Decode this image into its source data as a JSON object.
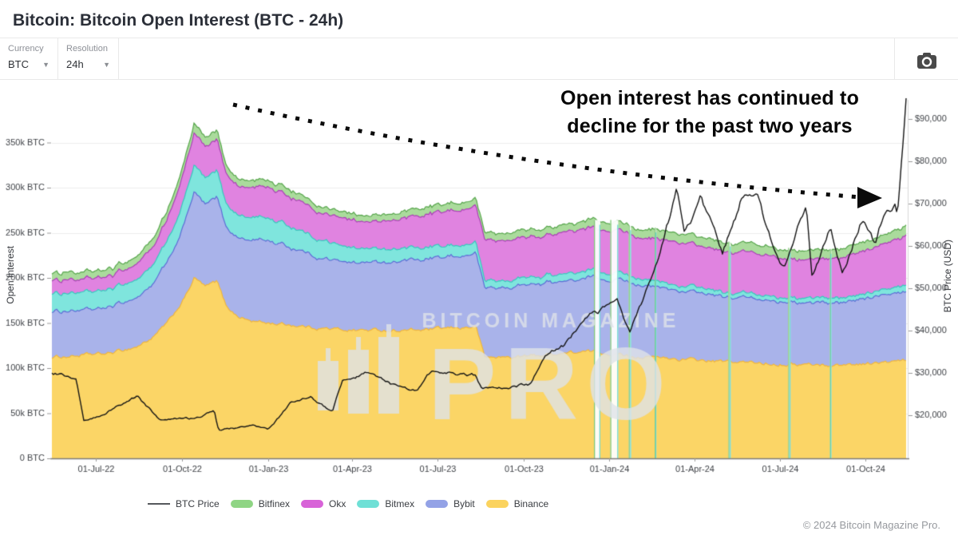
{
  "header": {
    "title": "Bitcoin: Bitcoin Open Interest (BTC - 24h)"
  },
  "controls": {
    "currency": {
      "label": "Currency",
      "value": "BTC"
    },
    "resolution": {
      "label": "Resolution",
      "value": "24h"
    }
  },
  "annotation": {
    "line1": "Open interest has continued to",
    "line2": "decline for the past two years"
  },
  "watermark": {
    "line1": "BITCOIN MAGAZINE",
    "line2": "PRO"
  },
  "footer": {
    "copyright": "© 2024 Bitcoin Magazine Pro."
  },
  "legend": {
    "items": [
      {
        "label": "BTC Price",
        "color": "#55585c",
        "type": "line"
      },
      {
        "label": "Bitfinex",
        "color": "#8FD584",
        "type": "area"
      },
      {
        "label": "Okx",
        "color": "#D863D8",
        "type": "area"
      },
      {
        "label": "Bitmex",
        "color": "#6FE0D6",
        "type": "area"
      },
      {
        "label": "Bybit",
        "color": "#93A2E6",
        "type": "area"
      },
      {
        "label": "Binance",
        "color": "#FBD35E",
        "type": "area"
      }
    ]
  },
  "chart_data": {
    "type": "area-stacked+line",
    "title": "Bitcoin Open Interest by exchange (BTC, 24h) with BTC price overlay",
    "x_ticks": {
      "labels": [
        "01-Jul-22",
        "01-Oct-22",
        "01-Jan-23",
        "01-Apr-23",
        "01-Jul-23",
        "01-Oct-23",
        "01-Jan-24",
        "01-Apr-24",
        "01-Jul-24",
        "01-Oct-24"
      ],
      "t": [
        1.54,
        4.57,
        7.59,
        10.55,
        13.54,
        16.56,
        19.58,
        22.57,
        25.56,
        28.58
      ]
    },
    "t_domain": [
      0,
      30
    ],
    "t_unit": "months since 2022-05-15",
    "y_left": {
      "title": "Open Interest",
      "unit": "k BTC",
      "labels": [
        "0 BTC",
        "50k BTC",
        "100k BTC",
        "150k BTC",
        "200k BTC",
        "250k BTC",
        "300k BTC",
        "350k BTC"
      ],
      "values": [
        0,
        50,
        100,
        150,
        200,
        250,
        300,
        350
      ],
      "lim": [
        0,
        400
      ]
    },
    "y_right": {
      "title": "BTC Price (USD)",
      "unit": "USD (thousands)",
      "labels": [
        "$20,000",
        "$30,000",
        "$40,000",
        "$50,000",
        "$60,000",
        "$70,000",
        "$80,000",
        "$90,000"
      ],
      "values": [
        20,
        30,
        40,
        50,
        60,
        70,
        80,
        90
      ],
      "lim": [
        10,
        97
      ]
    },
    "series": [
      {
        "key": "binance",
        "name": "Binance",
        "fill": "#FBD566",
        "stroke": "#F0B63E"
      },
      {
        "key": "bybit",
        "name": "Bybit",
        "fill": "#A9B3EA",
        "stroke": "#5D6ED6"
      },
      {
        "key": "bitmex",
        "name": "Bitmex",
        "fill": "#7FE5DD",
        "stroke": "#38C9BE"
      },
      {
        "key": "okx",
        "name": "Okx",
        "fill": "#E083E0",
        "stroke": "#AA42B6"
      },
      {
        "key": "bitfinex",
        "name": "Bitfinex",
        "fill": "#AADB9C",
        "stroke": "#57A54C"
      }
    ],
    "oi_anchors": {
      "t": [
        0,
        1,
        2,
        3,
        3.6,
        4.2,
        4.7,
        5,
        5.4,
        5.8,
        6.1,
        6.5,
        7,
        7.6,
        8.4,
        9.2,
        10,
        11,
        12,
        13,
        14,
        14.9,
        15.2,
        16,
        17,
        18,
        19,
        19.8,
        20.5,
        21.5,
        22.5,
        23.5,
        24.5,
        25.5,
        26.5,
        27.5,
        28.5,
        29.3,
        30
      ],
      "binance": [
        112,
        114,
        116,
        124,
        135,
        155,
        180,
        200,
        190,
        196,
        170,
        158,
        152,
        150,
        148,
        145,
        143,
        142,
        142,
        142,
        144,
        146,
        112,
        112,
        114,
        117,
        118,
        116,
        113,
        111,
        109,
        107,
        106,
        105,
        104,
        103,
        105,
        106,
        108
      ],
      "bybit": [
        50,
        51,
        52,
        55,
        60,
        70,
        85,
        95,
        92,
        94,
        88,
        88,
        90,
        91,
        86,
        80,
        77,
        75,
        77,
        78,
        79,
        80,
        77,
        77,
        78,
        80,
        82,
        82,
        80,
        77,
        75,
        72,
        71,
        70,
        69,
        69,
        72,
        74,
        77
      ],
      "bitmex": [
        20,
        20,
        20,
        20,
        21,
        24,
        28,
        30,
        29,
        29,
        26,
        25,
        25,
        25,
        23,
        21,
        18,
        15,
        14,
        13,
        12,
        12,
        8,
        8,
        8,
        8,
        8,
        8,
        7,
        6,
        6,
        5,
        5,
        5,
        5,
        5,
        5,
        6,
        7
      ],
      "okx": [
        15,
        15,
        15,
        17,
        20,
        26,
        32,
        35,
        34,
        34,
        33,
        32,
        33,
        34,
        33,
        31,
        30,
        30,
        32,
        35,
        38,
        40,
        45,
        45,
        45,
        46,
        47,
        47,
        46,
        47,
        47,
        45,
        45,
        44,
        43,
        44,
        47,
        50,
        55
      ],
      "bitfinex": [
        8,
        8,
        8,
        8,
        9,
        10,
        10,
        11,
        10,
        10,
        9,
        8,
        8,
        8,
        8,
        7,
        7,
        7,
        7,
        8,
        8,
        8,
        8,
        8,
        8,
        8,
        9,
        9,
        9,
        10,
        10,
        10,
        10,
        10,
        10,
        10,
        10,
        10,
        11
      ]
    },
    "price": {
      "name": "BTC Price",
      "color": "#141414",
      "t": [
        0,
        0.85,
        1.12,
        1.55,
        3.0,
        3.8,
        5.0,
        5.7,
        5.85,
        7.0,
        7.6,
        8.4,
        9.1,
        9.85,
        10.2,
        11.0,
        12.0,
        12.85,
        13.35,
        14.0,
        14.85,
        15.1,
        16.0,
        16.8,
        17.3,
        18.0,
        18.85,
        19.6,
        19.85,
        20.3,
        21.05,
        21.95,
        22.2,
        22.8,
        23.2,
        23.55,
        24.2,
        24.75,
        25.3,
        25.7,
        26.5,
        26.7,
        27.35,
        27.75,
        28.45,
        28.9,
        29.25,
        29.6,
        29.7,
        29.95,
        30
      ],
      "p": [
        30,
        29,
        19,
        19.5,
        24.5,
        19,
        19.2,
        21,
        16.5,
        17.5,
        16.8,
        23,
        24.5,
        20.5,
        28,
        30,
        27,
        25.8,
        30.5,
        30.2,
        29.5,
        26.2,
        26.5,
        27.5,
        34.5,
        36.5,
        43.8,
        45.5,
        46.5,
        39.5,
        52,
        73,
        63.5,
        71.5,
        64,
        58,
        71,
        71.5,
        60.5,
        55.5,
        69.5,
        53.5,
        64,
        53.5,
        66,
        60.5,
        68.5,
        70,
        67.5,
        88,
        93
      ]
    },
    "dropouts": [
      {
        "t": 19.15,
        "w": 8
      },
      {
        "t": 19.75,
        "w": 10
      },
      {
        "t": 20.3,
        "w": 3
      },
      {
        "t": 21.2,
        "w": 2
      },
      {
        "t": 23.8,
        "w": 3
      },
      {
        "t": 25.9,
        "w": 3
      },
      {
        "t": 27.35,
        "w": 2
      }
    ],
    "grid": "horizontal",
    "legend_position": "bottom"
  }
}
